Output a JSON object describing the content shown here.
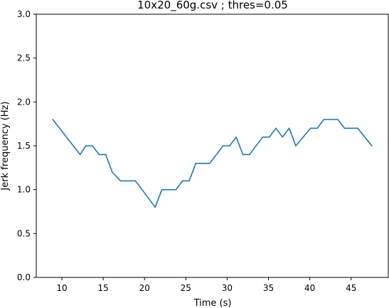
{
  "chart_data": {
    "type": "line",
    "title": "10x20_60g.csv ; thres=0.05",
    "xlabel": "Time (s)",
    "ylabel": "Jerk frequency (Hz)",
    "xlim": [
      6.9,
      49.5
    ],
    "ylim": [
      0.0,
      3.0
    ],
    "xticks": [
      10,
      15,
      20,
      25,
      30,
      35,
      40,
      45
    ],
    "yticks": [
      0.0,
      0.5,
      1.0,
      1.5,
      2.0,
      2.5,
      3.0
    ],
    "xtick_labels": [
      "10",
      "15",
      "20",
      "25",
      "30",
      "35",
      "40",
      "45"
    ],
    "ytick_labels": [
      "0.0",
      "0.5",
      "1.0",
      "1.5",
      "2.0",
      "2.5",
      "3.0"
    ],
    "grid": false,
    "series": [
      {
        "color": "#1f77b4",
        "x": [
          8.9,
          12.2,
          12.9,
          13.7,
          14.5,
          15.3,
          16.1,
          17.1,
          18.0,
          18.9,
          21.3,
          22.1,
          23.0,
          23.8,
          24.6,
          25.4,
          26.2,
          27.1,
          27.9,
          29.5,
          30.3,
          31.1,
          31.9,
          32.7,
          34.3,
          35.1,
          35.9,
          36.7,
          37.5,
          38.3,
          40.1,
          40.9,
          41.7,
          42.5,
          43.4,
          44.2,
          45.0,
          45.8,
          47.5
        ],
        "y": [
          1.8,
          1.4,
          1.5,
          1.5,
          1.4,
          1.4,
          1.2,
          1.1,
          1.1,
          1.1,
          0.8,
          1.0,
          1.0,
          1.0,
          1.1,
          1.1,
          1.3,
          1.3,
          1.3,
          1.5,
          1.5,
          1.6,
          1.4,
          1.4,
          1.6,
          1.6,
          1.7,
          1.6,
          1.7,
          1.5,
          1.7,
          1.7,
          1.8,
          1.8,
          1.8,
          1.7,
          1.7,
          1.7,
          1.5
        ]
      }
    ]
  }
}
